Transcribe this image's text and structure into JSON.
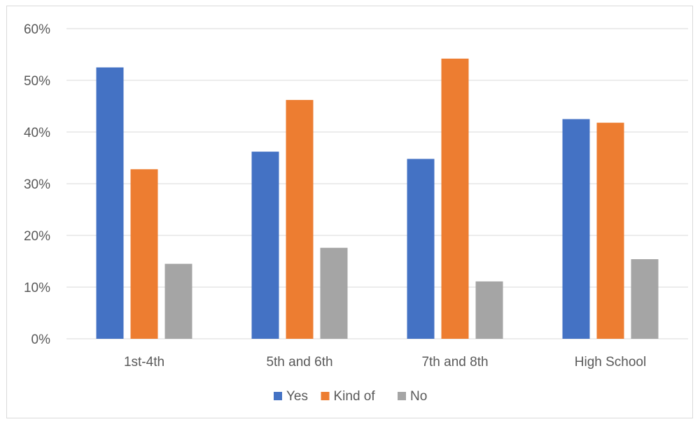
{
  "chart_data": {
    "type": "bar",
    "title": "",
    "xlabel": "",
    "ylabel": "",
    "categories": [
      "1st-4th",
      "5th and 6th",
      "7th and 8th",
      "High School"
    ],
    "series": [
      {
        "name": "Yes",
        "values": [
          52.5,
          36.2,
          34.8,
          42.5
        ],
        "color": "#4472C4"
      },
      {
        "name": "Kind of",
        "values": [
          32.8,
          46.2,
          54.2,
          41.8
        ],
        "color": "#ED7D31"
      },
      {
        "name": "No",
        "values": [
          14.5,
          17.6,
          11.1,
          15.4
        ],
        "color": "#A5A5A5"
      }
    ],
    "ylim": [
      0,
      60
    ],
    "yticks": [
      0,
      10,
      20,
      30,
      40,
      50,
      60
    ],
    "ytick_labels": [
      "0%",
      "10%",
      "20%",
      "30%",
      "40%",
      "50%",
      "60%"
    ],
    "grid": true,
    "legend_position": "bottom"
  }
}
